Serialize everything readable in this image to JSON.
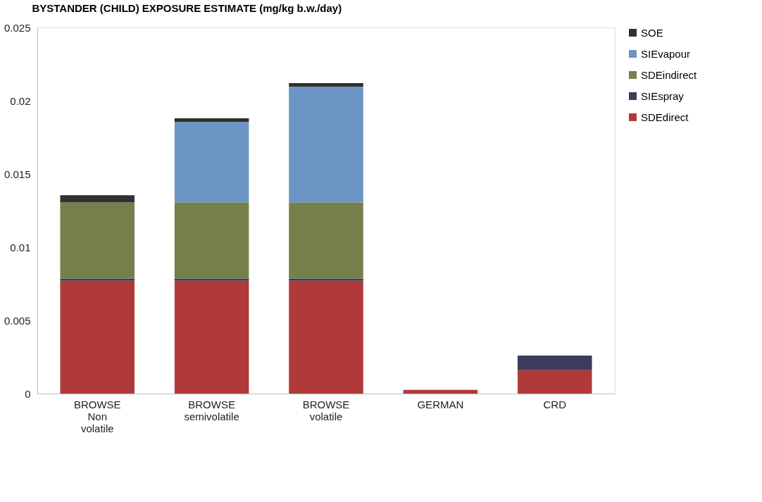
{
  "chart_data": {
    "type": "bar",
    "title": "BYSTANDER (CHILD) EXPOSURE ESTIMATE (mg/kg b.w./day)",
    "categories": [
      "BROWSE Non volatile",
      "BROWSE semivolatile",
      "BROWSE volatile",
      "GERMAN",
      "CRD"
    ],
    "stacked": true,
    "legend": "right",
    "grid": false,
    "ylim": [
      0,
      0.025
    ],
    "yticks": [
      0,
      0.005,
      0.01,
      0.015,
      0.02,
      0.025
    ],
    "series": [
      {
        "name": "SDEdirect",
        "color": "#b03a3a",
        "values": [
          0.0077,
          0.0077,
          0.0077,
          0.00025,
          0.0016
        ]
      },
      {
        "name": "SIEspray",
        "color": "#3b3b5c",
        "values": [
          0.00015,
          0.00015,
          0.00015,
          null,
          0.001
        ]
      },
      {
        "name": "SDEindirect",
        "color": "#76804a",
        "values": [
          0.0052,
          0.0052,
          0.0052,
          null,
          null
        ]
      },
      {
        "name": "SIEvapour",
        "color": "#6b95c4",
        "values": [
          null,
          0.0055,
          0.0079,
          null,
          null
        ]
      },
      {
        "name": "SOE",
        "color": "#303030",
        "values": [
          0.0005,
          0.00025,
          0.00025,
          null,
          null
        ]
      }
    ]
  }
}
